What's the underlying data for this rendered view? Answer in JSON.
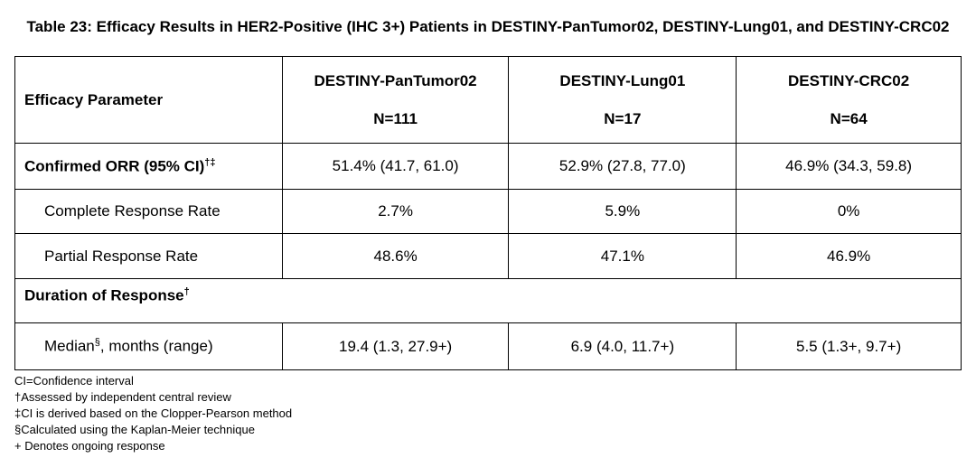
{
  "title": "Table 23: Efficacy Results in HER2-Positive (IHC 3+) Patients in DESTINY-PanTumor02, DESTINY-Lung01, and DESTINY-CRC02",
  "table": {
    "header": {
      "parameter": "Efficacy Parameter",
      "columns": [
        {
          "name": "DESTINY-PanTumor02",
          "n": "N=111"
        },
        {
          "name": "DESTINY-Lung01",
          "n": "N=17"
        },
        {
          "name": "DESTINY-CRC02",
          "n": "N=64"
        }
      ]
    },
    "rows": [
      {
        "label": "Confirmed ORR (95% CI)",
        "sup": "†‡",
        "cells": [
          "51.4% (41.7, 61.0)",
          "52.9% (27.8, 77.0)",
          "46.9% (34.3, 59.8)"
        ]
      },
      {
        "label": "Complete Response Rate",
        "cells": [
          "2.7%",
          "5.9%",
          "0%"
        ]
      },
      {
        "label": "Partial Response Rate",
        "cells": [
          "48.6%",
          "47.1%",
          "46.9%"
        ]
      },
      {
        "label": "Duration of Response",
        "sup": "†"
      },
      {
        "label": "Median",
        "sup": "§",
        "label_rest": ", months (range)",
        "cells": [
          "19.4 (1.3, 27.9+)",
          "6.9 (4.0, 11.7+)",
          "5.5 (1.3+, 9.7+)"
        ]
      }
    ]
  },
  "footnotes": [
    "CI=Confidence interval",
    "†Assessed by independent central review",
    "‡CI is derived based on the Clopper-Pearson method",
    "§Calculated using the Kaplan-Meier technique",
    "+ Denotes ongoing response"
  ]
}
